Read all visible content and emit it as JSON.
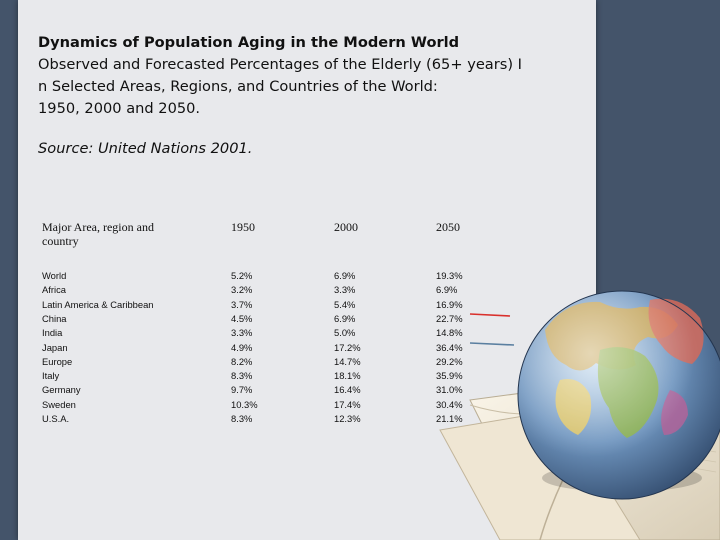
{
  "heading": {
    "title": "Dynamics of Population Aging in the Modern World",
    "line1": "Observed and Forecasted Percentages of the Elderly (65+ years) I",
    "line2": "n Selected Areas, Regions, and Countries of the World:",
    "line3": "1950, 2000 and 2050."
  },
  "source": "Source: United Nations 2001.",
  "table": {
    "headers": [
      "Major Area, region and country",
      "1950",
      "2000",
      "2050"
    ],
    "header_first_line1": "Major Area, region and",
    "header_first_line2": "country",
    "rows": [
      [
        "World",
        "5.2%",
        "6.9%",
        "19.3%"
      ],
      [
        "Africa",
        "3.2%",
        "3.3%",
        "6.9%"
      ],
      [
        "Latin America & Caribbean",
        "3.7%",
        "5.4%",
        "16.9%"
      ],
      [
        "China",
        "4.5%",
        "6.9%",
        "22.7%"
      ],
      [
        "India",
        "3.3%",
        "5.0%",
        "14.8%"
      ],
      [
        "Japan",
        "4.9%",
        "17.2%",
        "36.4%"
      ],
      [
        "Europe",
        "8.2%",
        "14.7%",
        "29.2%"
      ],
      [
        "Italy",
        "8.3%",
        "18.1%",
        "35.9%"
      ],
      [
        "Germany",
        "9.7%",
        "16.4%",
        "31.0%"
      ],
      [
        "Sweden",
        "10.3%",
        "17.4%",
        "30.4%"
      ],
      [
        "U.S.A.",
        "8.3%",
        "12.3%",
        "21.1%"
      ]
    ]
  },
  "colors": {
    "background": "#44546a",
    "slide": "#e8e9ec",
    "arrow_red": "#d9302c",
    "arrow_blue": "#5a7fa0"
  },
  "icons": {
    "decor": "globe-on-open-book"
  }
}
